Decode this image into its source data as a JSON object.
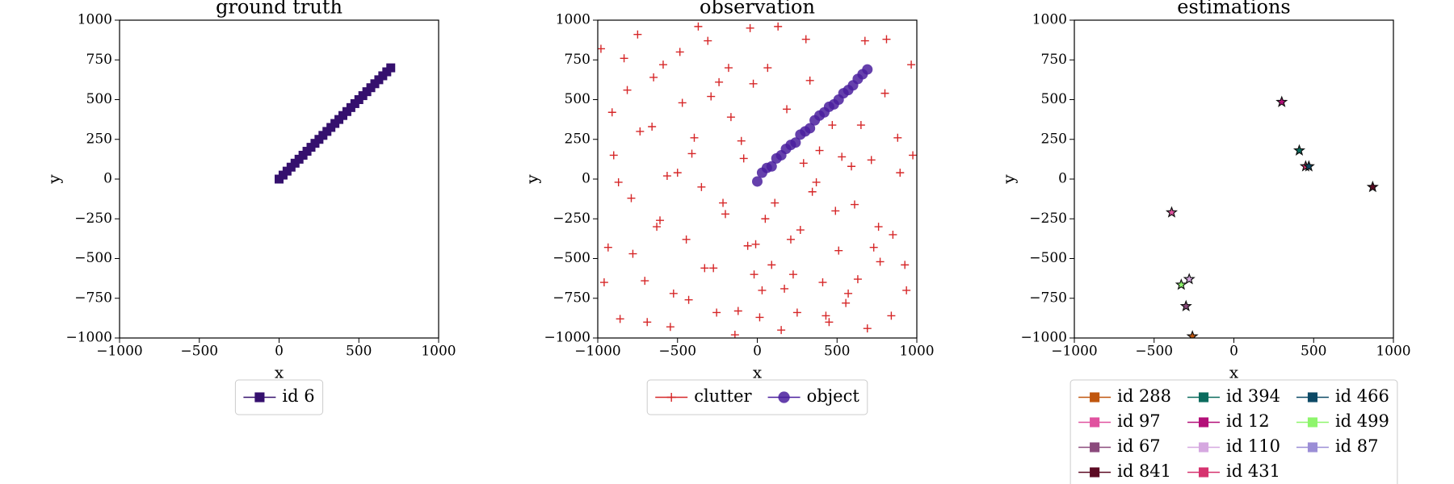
{
  "chart_data": [
    {
      "type": "line",
      "title": "ground truth",
      "x_label": "x",
      "y_label": "y",
      "xlim": [
        -1000,
        1000
      ],
      "ylim": [
        -1000,
        1000
      ],
      "xticks": [
        {
          "value": -1000,
          "label": "−1000"
        },
        {
          "value": -500,
          "label": "−500"
        },
        0,
        500,
        1000
      ],
      "yticks": [
        {
          "value": -1000,
          "label": "−1000"
        },
        {
          "value": -750,
          "label": "−750"
        },
        {
          "value": -500,
          "label": "−500"
        },
        {
          "value": -250,
          "label": "−250"
        },
        0,
        250,
        500,
        750,
        1000
      ],
      "legend_columns": 1,
      "series": [
        {
          "name": "id 6",
          "color": "#35106e",
          "marker": "square",
          "line": true,
          "x": [
            0,
            25,
            50,
            75,
            100,
            125,
            150,
            175,
            200,
            225,
            250,
            275,
            300,
            325,
            350,
            375,
            400,
            425,
            450,
            475,
            500,
            525,
            550,
            575,
            600,
            625,
            650,
            675,
            700
          ],
          "y": [
            0,
            25,
            50,
            75,
            100,
            125,
            150,
            175,
            200,
            225,
            250,
            275,
            300,
            325,
            350,
            375,
            400,
            425,
            450,
            475,
            500,
            525,
            550,
            575,
            600,
            625,
            650,
            675,
            700
          ]
        }
      ]
    },
    {
      "type": "scatter",
      "title": "observation",
      "x_label": "x",
      "y_label": "y",
      "xlim": [
        -1000,
        1000
      ],
      "ylim": [
        -1000,
        1000
      ],
      "xticks": [
        {
          "value": -1000,
          "label": "−1000"
        },
        {
          "value": -500,
          "label": "−500"
        },
        0,
        500,
        1000
      ],
      "yticks": [
        {
          "value": -1000,
          "label": "−1000"
        },
        {
          "value": -750,
          "label": "−750"
        },
        {
          "value": -500,
          "label": "−500"
        },
        {
          "value": -250,
          "label": "−250"
        },
        0,
        250,
        500,
        750,
        1000
      ],
      "legend_columns": 2,
      "series": [
        {
          "name": "clutter",
          "color": "#d62728",
          "marker": "plus",
          "x": [
            -980,
            -935,
            -900,
            -860,
            -815,
            -790,
            -750,
            -705,
            -660,
            -630,
            -590,
            -545,
            -500,
            -470,
            -430,
            -395,
            -350,
            -310,
            -275,
            -240,
            -200,
            -165,
            -120,
            -85,
            -45,
            -10,
            30,
            65,
            110,
            150,
            185,
            225,
            270,
            305,
            345,
            390,
            430,
            470,
            510,
            555,
            590,
            630,
            675,
            715,
            760,
            800,
            840,
            880,
            925,
            965,
            -960,
            -910,
            -870,
            -835,
            -780,
            -735,
            -690,
            -650,
            -610,
            -565,
            -525,
            -485,
            -445,
            -410,
            -370,
            -330,
            -290,
            -255,
            -215,
            -180,
            -140,
            -100,
            -60,
            -25,
            15,
            50,
            90,
            130,
            170,
            210,
            250,
            290,
            330,
            370,
            410,
            450,
            490,
            530,
            570,
            610,
            650,
            690,
            730,
            770,
            810,
            850,
            895,
            935,
            975,
            -20
          ],
          "y": [
            820,
            -430,
            150,
            -880,
            560,
            -120,
            910,
            -640,
            330,
            -300,
            720,
            -930,
            40,
            480,
            -760,
            260,
            -50,
            870,
            -560,
            610,
            -220,
            390,
            -830,
            130,
            950,
            -410,
            -700,
            700,
            -150,
            -950,
            440,
            -600,
            -320,
            880,
            -80,
            180,
            -860,
            340,
            -450,
            -780,
            80,
            -630,
            870,
            120,
            -300,
            540,
            -860,
            260,
            -540,
            720,
            -650,
            420,
            -20,
            760,
            -470,
            300,
            -900,
            640,
            -260,
            20,
            -720,
            800,
            -380,
            160,
            960,
            -560,
            520,
            -840,
            -150,
            700,
            -980,
            240,
            -420,
            600,
            -870,
            -250,
            -540,
            960,
            -690,
            -380,
            -840,
            100,
            620,
            -20,
            -650,
            -900,
            -200,
            140,
            -720,
            -160,
            340,
            -940,
            -430,
            -520,
            880,
            -350,
            40,
            -700,
            150,
            -600
          ]
        },
        {
          "name": "object",
          "color": "#4a1f9e",
          "marker": "circle",
          "x": [
            0,
            30,
            60,
            90,
            120,
            150,
            180,
            210,
            240,
            270,
            300,
            330,
            360,
            390,
            420,
            450,
            480,
            510,
            540,
            570,
            600,
            630,
            660,
            690
          ],
          "y": [
            -15,
            40,
            70,
            80,
            130,
            150,
            190,
            215,
            230,
            280,
            300,
            320,
            370,
            400,
            420,
            455,
            470,
            500,
            540,
            560,
            590,
            630,
            660,
            690
          ]
        }
      ]
    },
    {
      "type": "scatter",
      "title": "estimations",
      "x_label": "x",
      "y_label": "y",
      "xlim": [
        -1000,
        1000
      ],
      "ylim": [
        -1000,
        1000
      ],
      "xticks": [
        {
          "value": -1000,
          "label": "−1000"
        },
        {
          "value": -500,
          "label": "−500"
        },
        0,
        500,
        1000
      ],
      "yticks": [
        {
          "value": -1000,
          "label": "−1000"
        },
        {
          "value": -750,
          "label": "−750"
        },
        {
          "value": -500,
          "label": "−500"
        },
        {
          "value": -250,
          "label": "−250"
        },
        0,
        250,
        500,
        750,
        1000
      ],
      "legend_columns": 3,
      "series": [
        {
          "name": "id 288",
          "color": "#c0560e",
          "marker": "star",
          "x": [
            -260
          ],
          "y": [
            -990
          ]
        },
        {
          "name": "id 97",
          "color": "#e0529f",
          "marker": "star",
          "x": [
            -390
          ],
          "y": [
            -210
          ]
        },
        {
          "name": "id 67",
          "color": "#8b4a7c",
          "marker": "star",
          "x": [
            -300
          ],
          "y": [
            -800
          ]
        },
        {
          "name": "id 841",
          "color": "#5c0a23",
          "marker": "star",
          "x": [
            870
          ],
          "y": [
            -50
          ]
        },
        {
          "name": "id 394",
          "color": "#0b6b5e",
          "marker": "star",
          "x": [
            410
          ],
          "y": [
            180
          ]
        },
        {
          "name": "id 12",
          "color": "#b30f78",
          "marker": "star",
          "x": [
            300
          ],
          "y": [
            485
          ]
        },
        {
          "name": "id 110",
          "color": "#d6a8e0",
          "marker": "star",
          "x": [
            -280
          ],
          "y": [
            -630
          ]
        },
        {
          "name": "id 431",
          "color": "#d6336f",
          "marker": "star",
          "x": [
            450
          ],
          "y": [
            80
          ]
        },
        {
          "name": "id 466",
          "color": "#0d4a66",
          "marker": "star",
          "x": [
            470
          ],
          "y": [
            80
          ]
        },
        {
          "name": "id 499",
          "color": "#8ef56c",
          "marker": "star",
          "x": [
            -330
          ],
          "y": [
            -665
          ]
        },
        {
          "name": "id 87",
          "color": "#9b8ed6",
          "marker": "star",
          "x": [],
          "y": []
        }
      ]
    }
  ]
}
